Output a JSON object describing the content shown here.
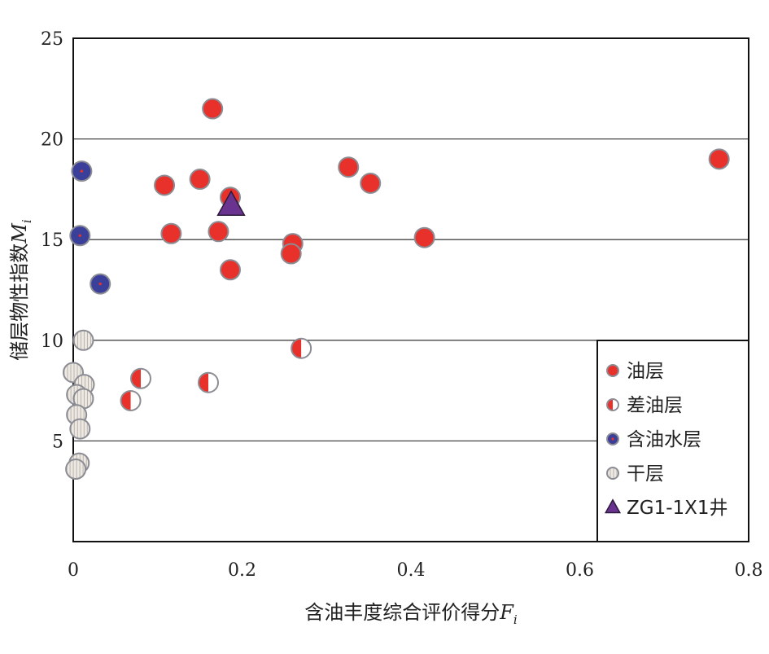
{
  "chart_data": {
    "type": "scatter",
    "xlabel": "含油丰度综合评价得分",
    "xlabel_var": "F",
    "xlabel_sub": "i",
    "ylabel": "储层物性指数",
    "ylabel_var": "M",
    "ylabel_sub": "i",
    "xlim": [
      0,
      0.8
    ],
    "ylim": [
      0,
      25
    ],
    "x_ticks": [
      "0",
      "0.2",
      "0.4",
      "0.6",
      "0.8"
    ],
    "x_tick_values": [
      0,
      0.2,
      0.4,
      0.6,
      0.8
    ],
    "y_ticks": [
      "5",
      "10",
      "15",
      "20",
      "25"
    ],
    "y_tick_values": [
      5,
      10,
      15,
      20,
      25
    ],
    "grid": "horizontal",
    "legend_position": "bottom-right",
    "colors": {
      "oil": "#e8312b",
      "water": "#3a3f9a",
      "triangle": "#6a3390",
      "dry": "#e6e2dc"
    },
    "series": [
      {
        "name": "油层",
        "marker": "oil",
        "points": [
          [
            0.165,
            21.5
          ],
          [
            0.108,
            17.7
          ],
          [
            0.15,
            18.0
          ],
          [
            0.186,
            17.1
          ],
          [
            0.116,
            15.3
          ],
          [
            0.172,
            15.4
          ],
          [
            0.186,
            13.5
          ],
          [
            0.26,
            14.8
          ],
          [
            0.258,
            14.3
          ],
          [
            0.326,
            18.6
          ],
          [
            0.352,
            17.8
          ],
          [
            0.416,
            15.1
          ],
          [
            0.765,
            19.0
          ]
        ]
      },
      {
        "name": "差油层",
        "marker": "half",
        "points": [
          [
            0.27,
            9.6
          ],
          [
            0.08,
            8.1
          ],
          [
            0.068,
            7.0
          ],
          [
            0.16,
            7.9
          ]
        ]
      },
      {
        "name": "含油水层",
        "marker": "water",
        "points": [
          [
            0.01,
            18.4
          ],
          [
            0.008,
            15.2
          ],
          [
            0.032,
            12.8
          ]
        ]
      },
      {
        "name": "干层",
        "marker": "dry",
        "points": [
          [
            0.012,
            10.0
          ],
          [
            0.0,
            8.4
          ],
          [
            0.013,
            7.8
          ],
          [
            0.004,
            7.3
          ],
          [
            0.012,
            7.1
          ],
          [
            0.004,
            6.3
          ],
          [
            0.008,
            5.6
          ],
          [
            0.007,
            3.9
          ],
          [
            0.003,
            3.6
          ]
        ]
      },
      {
        "name": "ZG1-1X1井",
        "marker": "triangle",
        "points": [
          [
            0.187,
            16.7
          ]
        ]
      }
    ]
  }
}
